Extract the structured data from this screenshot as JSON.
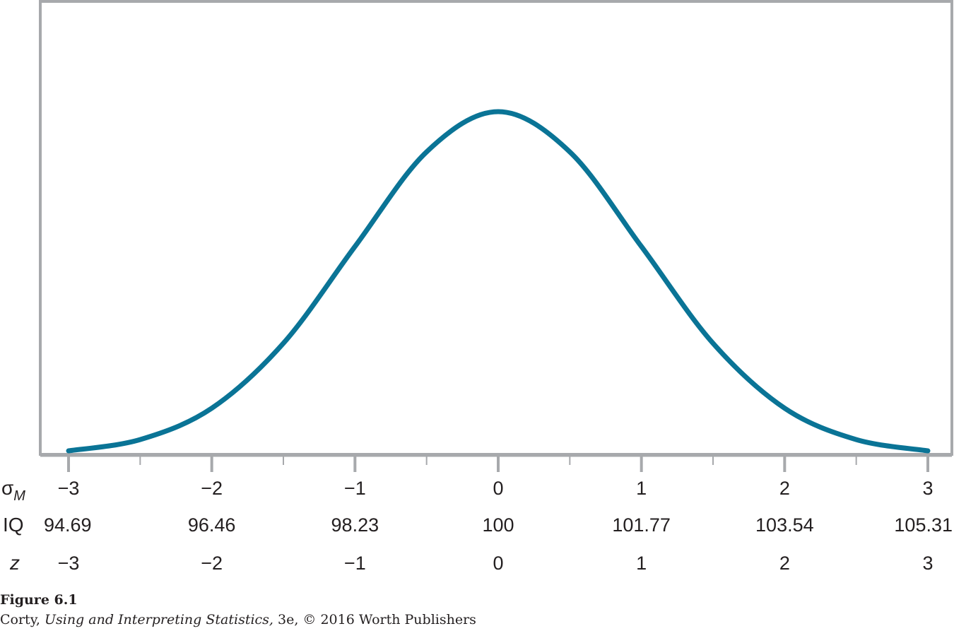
{
  "chart_data": {
    "type": "line",
    "curve": "normal-distribution",
    "x": [
      -3,
      -2.5,
      -2,
      -1.5,
      -1,
      -0.5,
      0,
      0.5,
      1,
      1.5,
      2,
      2.5,
      3
    ],
    "y": [
      0.0044,
      0.0175,
      0.054,
      0.1295,
      0.242,
      0.3521,
      0.3989,
      0.3521,
      0.242,
      0.1295,
      0.054,
      0.0175,
      0.0044
    ],
    "xlim": [
      -3,
      3
    ],
    "ylim": [
      0,
      0.45
    ],
    "grid": false,
    "line_color": "#0a7496",
    "frame_color": "#a7a9ac",
    "rows": [
      {
        "label": "σ",
        "subscript": "M",
        "ticks": [
          "−3",
          "−2",
          "−1",
          "0",
          "1",
          "2",
          "3"
        ]
      },
      {
        "label": "IQ",
        "subscript": "",
        "ticks": [
          "94.69",
          "96.46",
          "98.23",
          "100",
          "101.77",
          "103.54",
          "105.31"
        ]
      },
      {
        "label": "z",
        "subscript": "",
        "ticks": [
          "−3",
          "−2",
          "−1",
          "0",
          "1",
          "2",
          "3"
        ]
      }
    ]
  },
  "caption": {
    "title": "Figure 6.1",
    "author": "Corty, ",
    "book": "Using and Interpreting Statistics,",
    "rest": " 3e, © 2016 Worth Publishers"
  }
}
